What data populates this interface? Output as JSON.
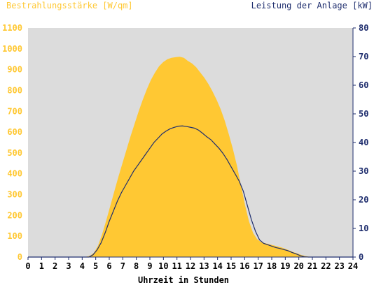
{
  "colors": {
    "irradiance": "#ffc833",
    "power": "#1f2e6e",
    "plot_bg": "#dcdcdc",
    "axis": "#1f2e6e"
  },
  "chart_data": {
    "type": "area",
    "title": "",
    "xlabel": "Uhrzeit in Stunden",
    "ylabel_left": "Bestrahlungsstärke [W/qm]",
    "ylabel_right": "Leistung der Anlage [kW]",
    "xlim": [
      0,
      24
    ],
    "ylim_left": [
      0,
      1100
    ],
    "ylim_right": [
      0,
      80
    ],
    "x_ticks": [
      "0",
      "1",
      "2",
      "3",
      "4",
      "5",
      "6",
      "7",
      "8",
      "9",
      "10",
      "11",
      "12",
      "13",
      "14",
      "15",
      "16",
      "17",
      "18",
      "19",
      "20",
      "21",
      "22",
      "23",
      "24"
    ],
    "y_left_ticks": [
      "0",
      "100",
      "200",
      "300",
      "400",
      "500",
      "600",
      "700",
      "800",
      "900",
      "1000",
      "1100"
    ],
    "y_right_ticks": [
      "0",
      "10",
      "20",
      "30",
      "40",
      "50",
      "60",
      "70",
      "80"
    ],
    "grid": false,
    "series": [
      {
        "axis": "left",
        "kind": "area",
        "x": [
          0,
          4.3,
          4.6,
          4.9,
          5.2,
          5.5,
          5.8,
          6.1,
          6.4,
          6.7,
          7.0,
          7.3,
          7.6,
          7.9,
          8.2,
          8.5,
          8.8,
          9.1,
          9.4,
          9.7,
          10.0,
          10.3,
          10.6,
          10.9,
          11.2,
          11.5,
          11.8,
          12.1,
          12.4,
          12.7,
          13.0,
          13.3,
          13.6,
          13.9,
          14.2,
          14.5,
          14.8,
          15.1,
          15.4,
          15.7,
          16.0,
          16.3,
          16.6,
          16.9,
          17.2,
          17.5,
          17.8,
          18.1,
          18.4,
          18.7,
          19.0,
          19.3,
          19.6,
          19.9,
          20.2,
          20.5,
          20.8,
          24
        ],
        "values": [
          0,
          0,
          5,
          20,
          55,
          110,
          175,
          245,
          315,
          385,
          450,
          515,
          580,
          640,
          700,
          755,
          805,
          850,
          885,
          915,
          935,
          948,
          955,
          958,
          960,
          955,
          940,
          928,
          910,
          885,
          860,
          830,
          795,
          755,
          710,
          655,
          590,
          520,
          440,
          345,
          250,
          170,
          115,
          85,
          70,
          65,
          60,
          55,
          50,
          45,
          38,
          30,
          22,
          15,
          8,
          3,
          0,
          0
        ]
      },
      {
        "axis": "right",
        "kind": "line",
        "x": [
          0,
          4.5,
          4.8,
          5.1,
          5.4,
          5.7,
          6.0,
          6.3,
          6.6,
          6.9,
          7.2,
          7.5,
          7.8,
          8.1,
          8.4,
          8.7,
          9.0,
          9.3,
          9.6,
          9.9,
          10.2,
          10.5,
          10.8,
          11.1,
          11.4,
          11.7,
          12.0,
          12.3,
          12.6,
          12.9,
          13.2,
          13.5,
          13.8,
          14.1,
          14.4,
          14.7,
          15.0,
          15.3,
          15.6,
          15.9,
          16.2,
          16.5,
          16.8,
          17.1,
          17.4,
          17.7,
          18.0,
          18.3,
          18.6,
          18.9,
          19.2,
          19.5,
          19.8,
          20.1,
          20.4,
          20.7,
          24
        ],
        "values": [
          0,
          0,
          0.8,
          2.5,
          5,
          8.5,
          12.5,
          16,
          19.5,
          22.5,
          25,
          27.5,
          30,
          32,
          34,
          36,
          38,
          40,
          41.5,
          43,
          44,
          44.8,
          45.3,
          45.7,
          45.8,
          45.6,
          45.3,
          45,
          44.3,
          43.2,
          42,
          41,
          39.5,
          38,
          36.2,
          34,
          31.5,
          29,
          26.5,
          23,
          18,
          13,
          9,
          6,
          4.8,
          4.3,
          3.8,
          3.3,
          3,
          2.6,
          2.2,
          1.6,
          1.1,
          0.5,
          0.1,
          0,
          0
        ]
      }
    ]
  }
}
